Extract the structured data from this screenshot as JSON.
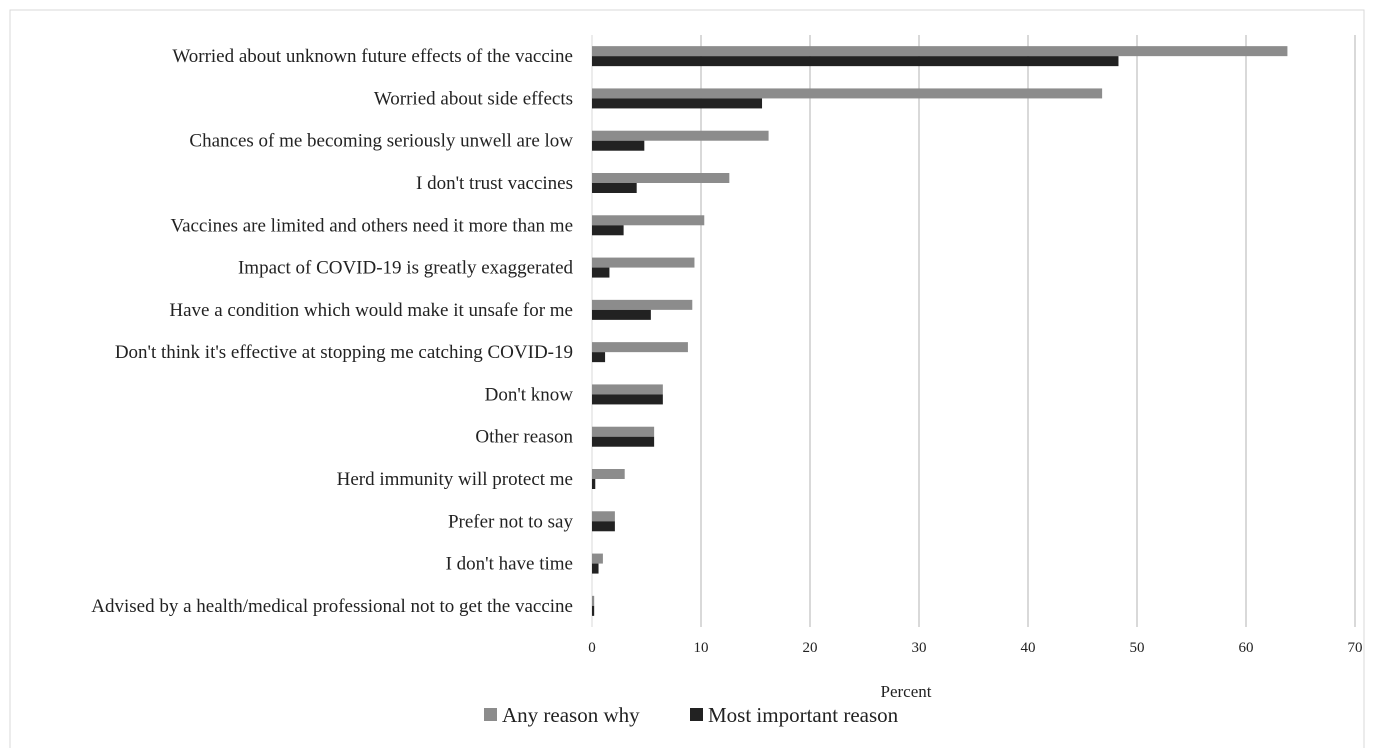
{
  "chart_data": {
    "type": "bar",
    "orientation": "horizontal",
    "title": "",
    "xlabel": "Percent",
    "ylabel": "",
    "xlim": [
      0,
      70
    ],
    "x_ticks": [
      0,
      10,
      20,
      30,
      40,
      50,
      60,
      70
    ],
    "grid": "vertical",
    "legend_position": "bottom",
    "categories": [
      "Worried about unknown future effects of the vaccine",
      "Worried about side effects",
      "Chances of me becoming seriously unwell are low",
      "I don't trust vaccines",
      "Vaccines are limited and others need it more than me",
      "Impact of COVID-19 is greatly exaggerated",
      "Have a condition which would make it unsafe for me",
      "Don't think it's effective at stopping me catching COVID-19",
      "Don't know",
      "Other reason",
      "Herd immunity will protect me",
      "Prefer not to say",
      "I don't have time",
      "Advised by a health/medical professional not to get the vaccine"
    ],
    "series": [
      {
        "name": "Any reason why",
        "color": "#8c8c8c",
        "values": [
          63.8,
          46.8,
          16.2,
          12.6,
          10.3,
          9.4,
          9.2,
          8.8,
          6.5,
          5.7,
          3.0,
          2.1,
          1.0,
          0.2
        ]
      },
      {
        "name": "Most important reason",
        "color": "#222222",
        "values": [
          48.3,
          15.6,
          4.8,
          4.1,
          2.9,
          1.6,
          5.4,
          1.2,
          6.5,
          5.7,
          0.3,
          2.1,
          0.6,
          0.2
        ]
      }
    ]
  }
}
